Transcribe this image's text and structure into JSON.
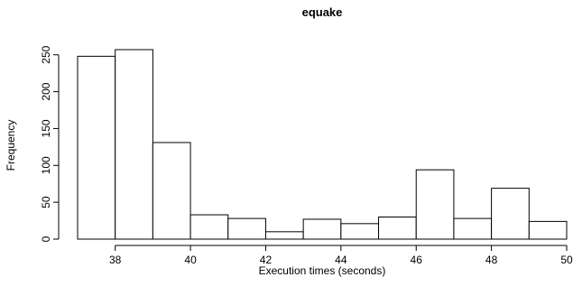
{
  "chart_data": {
    "type": "bar",
    "title": "equake",
    "xlabel": "Execution times (seconds)",
    "ylabel": "Frequency",
    "bins": [
      {
        "start": 37,
        "end": 38,
        "count": 248
      },
      {
        "start": 38,
        "end": 39,
        "count": 257
      },
      {
        "start": 39,
        "end": 40,
        "count": 131
      },
      {
        "start": 40,
        "end": 41,
        "count": 33
      },
      {
        "start": 41,
        "end": 42,
        "count": 28
      },
      {
        "start": 42,
        "end": 43,
        "count": 10
      },
      {
        "start": 43,
        "end": 44,
        "count": 27
      },
      {
        "start": 44,
        "end": 45,
        "count": 21
      },
      {
        "start": 45,
        "end": 46,
        "count": 30
      },
      {
        "start": 46,
        "end": 47,
        "count": 94
      },
      {
        "start": 47,
        "end": 48,
        "count": 28
      },
      {
        "start": 48,
        "end": 49,
        "count": 69
      },
      {
        "start": 49,
        "end": 50,
        "count": 24
      }
    ],
    "x_ticks": [
      "38",
      "40",
      "42",
      "44",
      "46",
      "48",
      "50"
    ],
    "y_ticks": [
      "0",
      "50",
      "100",
      "150",
      "200",
      "250"
    ],
    "xlim": [
      37,
      50
    ],
    "ylim": [
      0,
      257
    ],
    "grid": false,
    "legend": "none"
  }
}
